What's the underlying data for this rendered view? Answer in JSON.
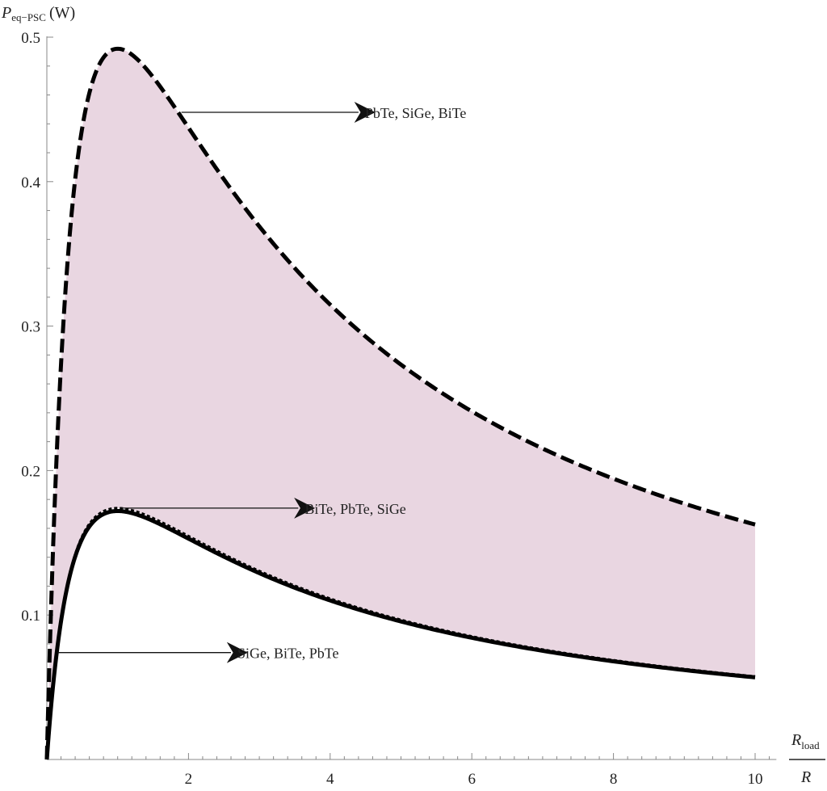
{
  "chart_data": {
    "type": "line",
    "title": "",
    "ylabel": {
      "main": "P",
      "sub": "eq−PSC",
      "unit": "(W)"
    },
    "xlabel": {
      "numerator_main": "R",
      "numerator_sub": "load",
      "denominator": "R"
    },
    "xlim": [
      0,
      10.3
    ],
    "ylim": [
      0,
      0.5
    ],
    "x_ticks": [
      2,
      4,
      6,
      8,
      10
    ],
    "x_tick_labels": [
      "2",
      "4",
      "6",
      "8",
      "10"
    ],
    "y_ticks": [
      0.1,
      0.2,
      0.3,
      0.4,
      0.5
    ],
    "y_tick_labels": [
      "0.1",
      "0.2",
      "0.3",
      "0.4",
      "0.5"
    ],
    "grid": false,
    "fill_between": {
      "between": "upper-dashed and lower-dotted curve",
      "color": "#e9d6e1"
    },
    "curve_model": "y = peak * 4 * x / (1 + x)^2",
    "x_range": [
      0,
      10
    ],
    "series": [
      {
        "style": "dashed",
        "peak": 0.492,
        "x": [
          0,
          0.1,
          0.25,
          0.5,
          1,
          1.5,
          2,
          3,
          4,
          5,
          6,
          7,
          8,
          9,
          10
        ],
        "y": [
          0,
          0.163,
          0.315,
          0.437,
          0.492,
          0.472,
          0.437,
          0.369,
          0.315,
          0.273,
          0.241,
          0.215,
          0.194,
          0.177,
          0.163
        ]
      },
      {
        "style": "dotted",
        "peak": 0.174,
        "x": [
          0,
          0.1,
          0.25,
          0.5,
          1,
          1.5,
          2,
          3,
          4,
          5,
          6,
          7,
          8,
          9,
          10
        ],
        "y": [
          0,
          0.058,
          0.111,
          0.155,
          0.174,
          0.167,
          0.155,
          0.131,
          0.111,
          0.097,
          0.085,
          0.076,
          0.069,
          0.063,
          0.058
        ]
      },
      {
        "style": "solid",
        "peak": 0.172,
        "x": [
          0,
          0.1,
          0.25,
          0.5,
          1,
          1.5,
          2,
          3,
          4,
          5,
          6,
          7,
          8,
          9,
          10
        ],
        "y": [
          0,
          0.057,
          0.11,
          0.153,
          0.172,
          0.165,
          0.153,
          0.129,
          0.11,
          0.096,
          0.084,
          0.075,
          0.068,
          0.062,
          0.057
        ]
      }
    ],
    "annotations": [
      {
        "text": "PbTe, SiGe, BiTe",
        "arrow_from": [
          1.9,
          0.448
        ],
        "arrow_to": [
          4.4,
          0.448
        ]
      },
      {
        "text": "BiTe, PbTe, SiGe",
        "arrow_from": [
          1.05,
          0.174
        ],
        "arrow_to": [
          3.55,
          0.174
        ]
      },
      {
        "text": "SiGe, BiTe, PbTe",
        "arrow_from": [
          0.15,
          0.074
        ],
        "arrow_to": [
          2.6,
          0.074
        ]
      }
    ]
  }
}
